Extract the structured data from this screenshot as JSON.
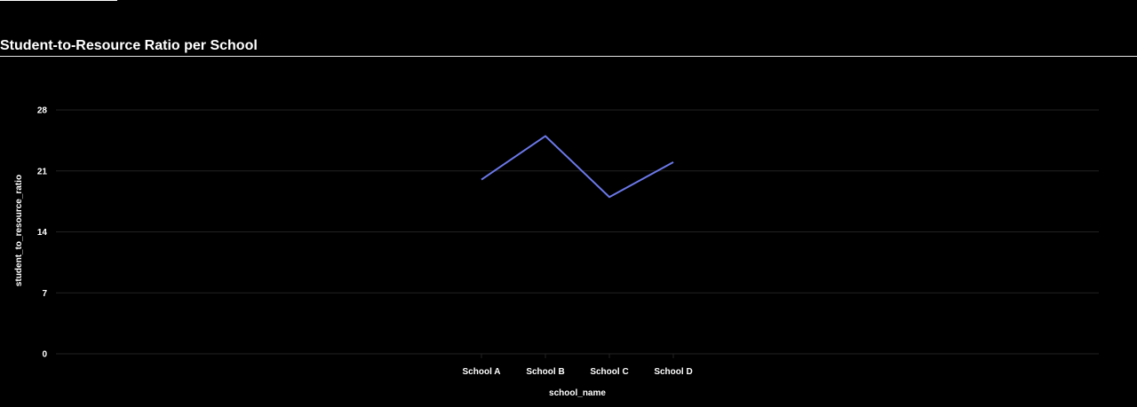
{
  "chart_data": {
    "type": "line",
    "title": "Student-to-Resource Ratio per School",
    "xlabel": "school_name",
    "ylabel": "student_to_resource_ratio",
    "categories": [
      "School A",
      "School B",
      "School C",
      "School D"
    ],
    "series": [
      {
        "name": "student_to_resource_ratio",
        "values": [
          20,
          25,
          18,
          22
        ]
      }
    ],
    "ylim": [
      0,
      28
    ],
    "yticks": [
      0,
      7,
      14,
      21,
      28
    ],
    "grid": true,
    "legend": "none"
  },
  "colors": {
    "line": "#6b78e8",
    "grid": "#222222",
    "background": "#000000",
    "text": "#ffffff"
  }
}
